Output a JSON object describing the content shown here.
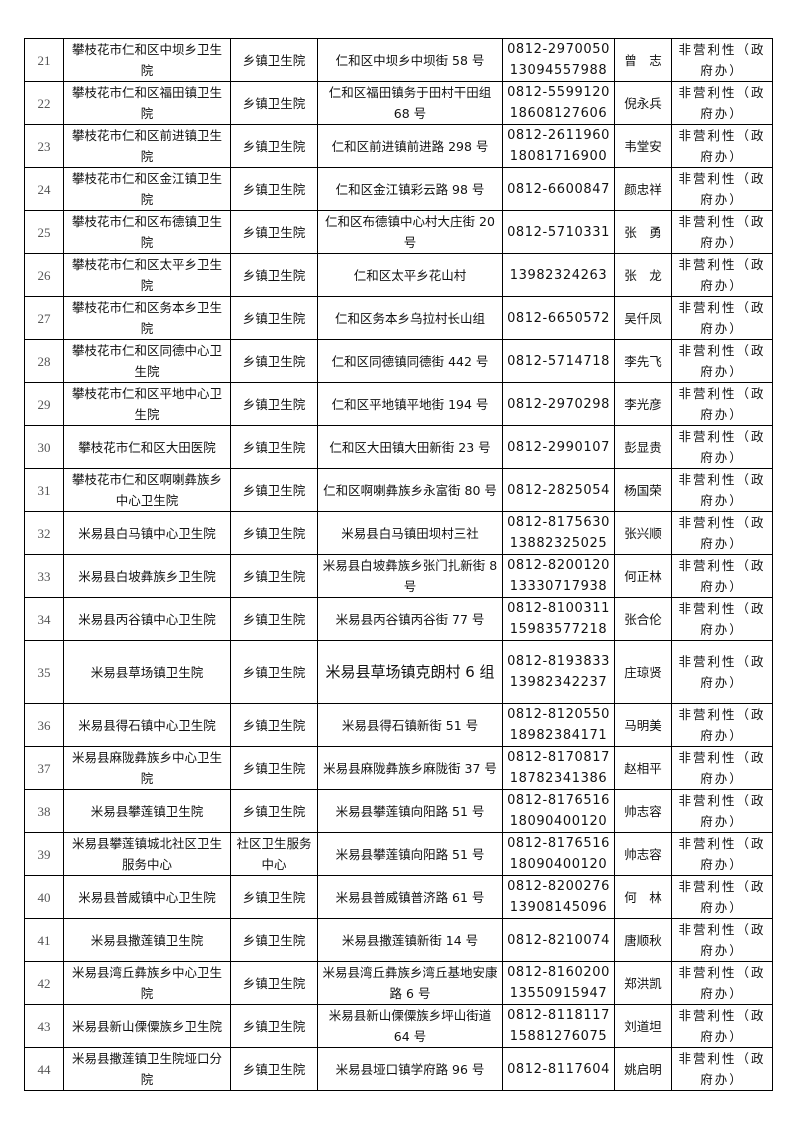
{
  "table": {
    "rows": [
      {
        "no": "21",
        "name": "攀枝花市仁和区中坝乡卫生院",
        "type": "乡镇卫生院",
        "address": "仁和区中坝乡中坝街 58 号",
        "phones": [
          "0812-2970050",
          "13094557988"
        ],
        "contact": "曾　志",
        "nature": "非营利性（政府办）"
      },
      {
        "no": "22",
        "name": "攀枝花市仁和区福田镇卫生院",
        "type": "乡镇卫生院",
        "address": "仁和区福田镇务于田村干田组 68 号",
        "phones": [
          "0812-5599120",
          "18608127606"
        ],
        "contact": "倪永兵",
        "nature": "非营利性（政府办）"
      },
      {
        "no": "23",
        "name": "攀枝花市仁和区前进镇卫生院",
        "type": "乡镇卫生院",
        "address": "仁和区前进镇前进路 298 号",
        "phones": [
          "0812-2611960",
          "18081716900"
        ],
        "contact": "韦堂安",
        "nature": "非营利性（政府办）"
      },
      {
        "no": "24",
        "name": "攀枝花市仁和区金江镇卫生院",
        "type": "乡镇卫生院",
        "address": "仁和区金江镇彩云路 98 号",
        "phones": [
          "0812-6600847"
        ],
        "contact": "颜忠祥",
        "nature": "非营利性（政府办）"
      },
      {
        "no": "25",
        "name": "攀枝花市仁和区布德镇卫生院",
        "type": "乡镇卫生院",
        "address": "仁和区布德镇中心村大庄街 20 号",
        "phones": [
          "0812-5710331"
        ],
        "contact": "张　勇",
        "nature": "非营利性（政府办）"
      },
      {
        "no": "26",
        "name": "攀枝花市仁和区太平乡卫生院",
        "type": "乡镇卫生院",
        "address": "仁和区太平乡花山村",
        "phones": [
          "13982324263"
        ],
        "contact": "张　龙",
        "nature": "非营利性（政府办）"
      },
      {
        "no": "27",
        "name": "攀枝花市仁和区务本乡卫生院",
        "type": "乡镇卫生院",
        "address": "仁和区务本乡乌拉村长山组",
        "phones": [
          "0812-6650572"
        ],
        "contact": "吴仟凤",
        "nature": "非营利性（政府办）"
      },
      {
        "no": "28",
        "name": "攀枝花市仁和区同德中心卫生院",
        "type": "乡镇卫生院",
        "address": "仁和区同德镇同德街 442 号",
        "phones": [
          "0812-5714718"
        ],
        "contact": "李先飞",
        "nature": "非营利性（政府办）"
      },
      {
        "no": "29",
        "name": "攀枝花市仁和区平地中心卫生院",
        "type": "乡镇卫生院",
        "address": "仁和区平地镇平地街 194 号",
        "phones": [
          "0812-2970298"
        ],
        "contact": "李光彦",
        "nature": "非营利性（政府办）"
      },
      {
        "no": "30",
        "name": "攀枝花市仁和区大田医院",
        "type": "乡镇卫生院",
        "address": "仁和区大田镇大田新街 23 号",
        "phones": [
          "0812-2990107"
        ],
        "contact": "彭显贵",
        "nature": "非营利性（政府办）"
      },
      {
        "no": "31",
        "name": "攀枝花市仁和区啊喇彝族乡中心卫生院",
        "type": "乡镇卫生院",
        "address": "仁和区啊喇彝族乡永富街 80 号",
        "phones": [
          "0812-2825054"
        ],
        "contact": "杨国荣",
        "nature": "非营利性（政府办）"
      },
      {
        "no": "32",
        "name": "米易县白马镇中心卫生院",
        "type": "乡镇卫生院",
        "address": "米易县白马镇田坝村三社",
        "phones": [
          "0812-8175630",
          "13882325025"
        ],
        "contact": "张兴顺",
        "nature": "非营利性（政府办）"
      },
      {
        "no": "33",
        "name": "米易县白坡彝族乡卫生院",
        "type": "乡镇卫生院",
        "address": "米易县白坡彝族乡张门扎新街 8 号",
        "phones": [
          "0812-8200120",
          "13330717938"
        ],
        "contact": "何正林",
        "nature": "非营利性（政府办）"
      },
      {
        "no": "34",
        "name": "米易县丙谷镇中心卫生院",
        "type": "乡镇卫生院",
        "address": "米易县丙谷镇丙谷街 77 号",
        "phones": [
          "0812-8100311",
          "15983577218"
        ],
        "contact": "张合伦",
        "nature": "非营利性（政府办）"
      },
      {
        "no": "35",
        "name": "米易县草场镇卫生院",
        "type": "乡镇卫生院",
        "address": "米易县草场镇克朗村 6 组",
        "phones": [
          "0812-8193833",
          "13982342237"
        ],
        "contact": "庄琼贤",
        "nature": "非营利性（政府办）",
        "tall": true
      },
      {
        "no": "36",
        "name": "米易县得石镇中心卫生院",
        "type": "乡镇卫生院",
        "address": "米易县得石镇新街 51 号",
        "phones": [
          "0812-8120550",
          "18982384171"
        ],
        "contact": "马明美",
        "nature": "非营利性（政府办）"
      },
      {
        "no": "37",
        "name": "米易县麻陇彝族乡中心卫生院",
        "type": "乡镇卫生院",
        "address": "米易县麻陇彝族乡麻陇街 37 号",
        "phones": [
          "0812-8170817",
          "18782341386"
        ],
        "contact": "赵相平",
        "nature": "非营利性（政府办）"
      },
      {
        "no": "38",
        "name": "米易县攀莲镇卫生院",
        "type": "乡镇卫生院",
        "address": "米易县攀莲镇向阳路 51 号",
        "phones": [
          "0812-8176516",
          "18090400120"
        ],
        "contact": "帅志容",
        "nature": "非营利性（政府办）"
      },
      {
        "no": "39",
        "name": "米易县攀莲镇城北社区卫生服务中心",
        "type": "社区卫生服务中心",
        "address": "米易县攀莲镇向阳路 51 号",
        "phones": [
          "0812-8176516",
          "18090400120"
        ],
        "contact": "帅志容",
        "nature": "非营利性（政府办）"
      },
      {
        "no": "40",
        "name": "米易县普威镇中心卫生院",
        "type": "乡镇卫生院",
        "address": "米易县普威镇普济路 61 号",
        "phones": [
          "0812-8200276",
          "13908145096"
        ],
        "contact": "何　林",
        "nature": "非营利性（政府办）"
      },
      {
        "no": "41",
        "name": "米易县撒莲镇卫生院",
        "type": "乡镇卫生院",
        "address": "米易县撒莲镇新街 14 号",
        "phones": [
          "0812-8210074"
        ],
        "contact": "唐顺秋",
        "nature": "非营利性（政府办）"
      },
      {
        "no": "42",
        "name": "米易县湾丘彝族乡中心卫生院",
        "type": "乡镇卫生院",
        "address": "米易县湾丘彝族乡湾丘基地安康路 6 号",
        "phones": [
          "0812-8160200",
          "13550915947"
        ],
        "contact": "郑洪凯",
        "nature": "非营利性（政府办）"
      },
      {
        "no": "43",
        "name": "米易县新山傈僳族乡卫生院",
        "type": "乡镇卫生院",
        "address": "米易县新山傈僳族乡坪山街道 64 号",
        "phones": [
          "0812-8118117",
          "15881276075"
        ],
        "contact": "刘道坦",
        "nature": "非营利性（政府办）"
      },
      {
        "no": "44",
        "name": "米易县撒莲镇卫生院垭口分院",
        "type": "乡镇卫生院",
        "address": "米易县垭口镇学府路 96 号",
        "phones": [
          "0812-8117604"
        ],
        "contact": "姚启明",
        "nature": "非营利性（政府办）"
      }
    ]
  }
}
